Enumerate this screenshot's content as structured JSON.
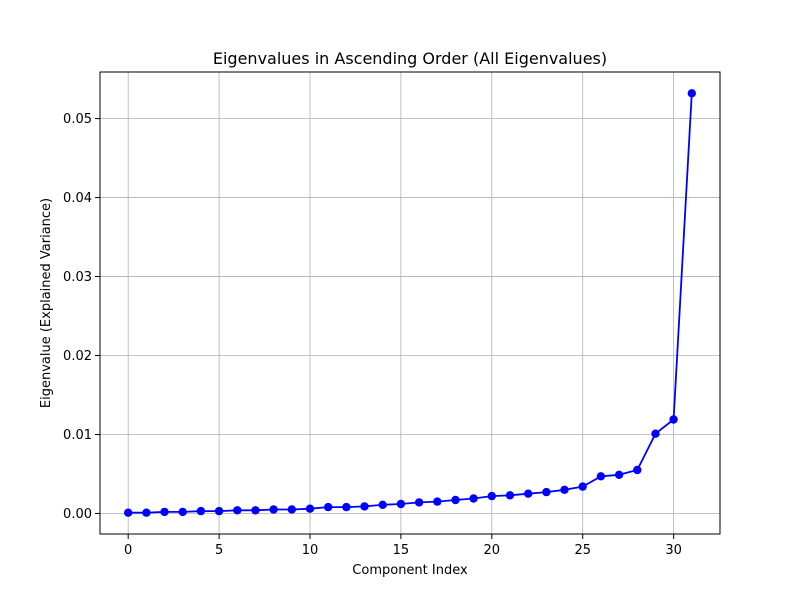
{
  "chart_data": {
    "type": "line",
    "title": "Eigenvalues in Ascending Order (All Eigenvalues)",
    "xlabel": "Component Index",
    "ylabel": "Eigenvalue (Explained Variance)",
    "xlim": [
      -1.55,
      32.55
    ],
    "ylim": [
      -0.0026,
      0.0559
    ],
    "xticks": [
      0,
      5,
      10,
      15,
      20,
      25,
      30
    ],
    "yticks": [
      0.0,
      0.01,
      0.02,
      0.03,
      0.04,
      0.05
    ],
    "ytick_labels": [
      "0.00",
      "0.01",
      "0.02",
      "0.03",
      "0.04",
      "0.05"
    ],
    "grid": true,
    "series": [
      {
        "color": "#0000ff",
        "marker": "circle",
        "x": [
          0,
          1,
          2,
          3,
          4,
          5,
          6,
          7,
          8,
          9,
          10,
          11,
          12,
          13,
          14,
          15,
          16,
          17,
          18,
          19,
          20,
          21,
          22,
          23,
          24,
          25,
          26,
          27,
          28,
          29,
          30,
          31
        ],
        "values": [
          0.0001,
          0.0001,
          0.0002,
          0.0002,
          0.0003,
          0.0003,
          0.0004,
          0.0004,
          0.0005,
          0.0005,
          0.0006,
          0.0008,
          0.0008,
          0.0009,
          0.0011,
          0.0012,
          0.0014,
          0.0015,
          0.0017,
          0.0019,
          0.0022,
          0.0023,
          0.0025,
          0.0027,
          0.003,
          0.0034,
          0.0047,
          0.0049,
          0.0055,
          0.0101,
          0.0119,
          0.0532
        ]
      }
    ]
  }
}
